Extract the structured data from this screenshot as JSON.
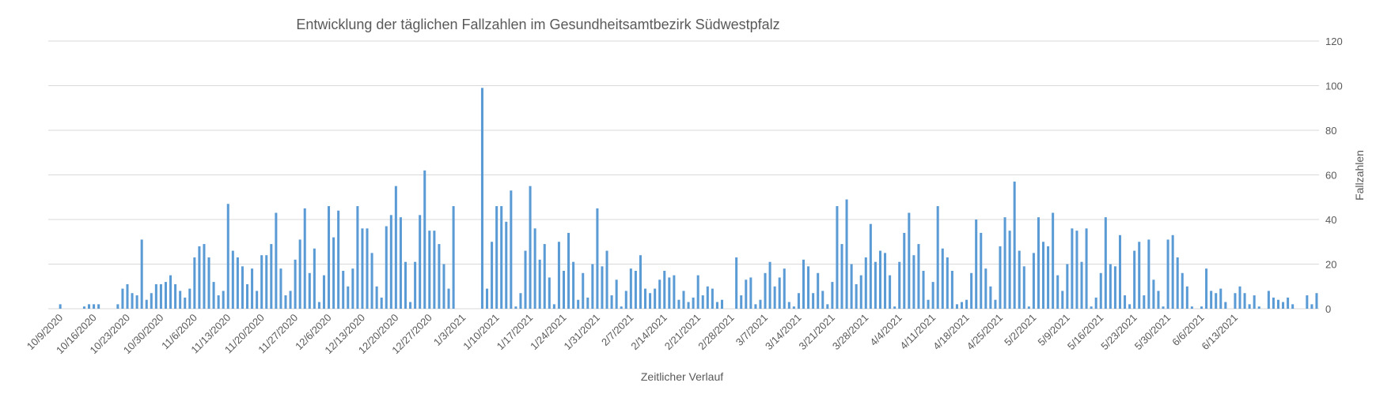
{
  "chart_data": {
    "type": "bar",
    "title": "Entwicklung der täglichen Fallzahlen im Gesundheitsamtbezirk Südwestpfalz",
    "xlabel": "Zeitlicher Verlauf",
    "ylabel": "Fallzahlen",
    "ylim": [
      0,
      120
    ],
    "yticks": [
      0,
      20,
      40,
      60,
      80,
      100,
      120
    ],
    "y_axis_position": "right",
    "grid": true,
    "legend": "none",
    "bar_color": "#5b9bd5",
    "start_date": "10/7/2020",
    "xtick_labels": [
      "10/9/2020",
      "10/16/2020",
      "10/23/2020",
      "10/30/2020",
      "11/6/2020",
      "11/13/2020",
      "11/20/2020",
      "11/27/2020",
      "12/6/2020",
      "12/13/2020",
      "12/20/2020",
      "12/27/2020",
      "1/3/2021",
      "1/10/2021",
      "1/17/2021",
      "1/24/2021",
      "1/31/2021",
      "2/7/2021",
      "2/14/2021",
      "2/21/2021",
      "2/28/2021",
      "3/7/2021",
      "3/14/2021",
      "3/21/2021",
      "3/28/2021",
      "4/4/2021",
      "4/11/2021",
      "4/18/2021",
      "4/25/2021",
      "5/2/2021",
      "5/9/2021",
      "5/16/2021",
      "5/23/2021",
      "5/30/2021",
      "6/6/2021",
      "6/13/2021"
    ],
    "values": [
      0,
      0,
      2,
      0,
      0,
      0,
      0,
      1,
      2,
      2,
      2,
      0,
      0,
      0,
      2,
      9,
      11,
      7,
      6,
      31,
      4,
      7,
      11,
      11,
      12,
      15,
      11,
      8,
      5,
      9,
      23,
      28,
      29,
      23,
      12,
      6,
      8,
      47,
      26,
      23,
      19,
      11,
      18,
      8,
      24,
      24,
      29,
      43,
      18,
      6,
      8,
      22,
      31,
      45,
      16,
      27,
      3,
      15,
      46,
      32,
      44,
      17,
      10,
      18,
      46,
      36,
      36,
      25,
      10,
      5,
      37,
      42,
      55,
      41,
      21,
      3,
      21,
      42,
      62,
      35,
      35,
      29,
      20,
      9,
      46,
      0,
      0,
      0,
      0,
      0,
      99,
      9,
      30,
      46,
      46,
      39,
      53,
      1,
      7,
      26,
      55,
      36,
      22,
      29,
      14,
      2,
      30,
      17,
      34,
      21,
      4,
      16,
      5,
      20,
      45,
      19,
      26,
      6,
      13,
      1,
      8,
      18,
      17,
      24,
      9,
      7,
      9,
      13,
      17,
      14,
      15,
      4,
      8,
      3,
      5,
      15,
      6,
      10,
      9,
      3,
      4,
      0,
      0,
      23,
      6,
      13,
      14,
      2,
      4,
      16,
      21,
      10,
      14,
      18,
      3,
      1,
      7,
      22,
      19,
      7,
      16,
      8,
      2,
      12,
      46,
      29,
      49,
      20,
      11,
      15,
      23,
      38,
      21,
      26,
      25,
      15,
      1,
      21,
      34,
      43,
      24,
      29,
      17,
      4,
      12,
      46,
      27,
      23,
      17,
      2,
      3,
      4,
      16,
      40,
      34,
      18,
      10,
      4,
      28,
      41,
      35,
      57,
      26,
      19,
      1,
      25,
      41,
      30,
      28,
      43,
      15,
      8,
      20,
      36,
      35,
      21,
      36,
      1,
      5,
      16,
      41,
      20,
      19,
      33,
      6,
      2,
      26,
      30,
      6,
      31,
      13,
      8,
      1,
      31,
      33,
      23,
      16,
      10,
      1,
      0,
      1,
      18,
      8,
      7,
      9,
      3,
      0,
      7,
      10,
      7,
      2,
      6,
      1,
      0,
      8,
      5,
      4,
      3,
      5,
      2,
      0,
      0,
      6,
      2,
      7
    ]
  }
}
